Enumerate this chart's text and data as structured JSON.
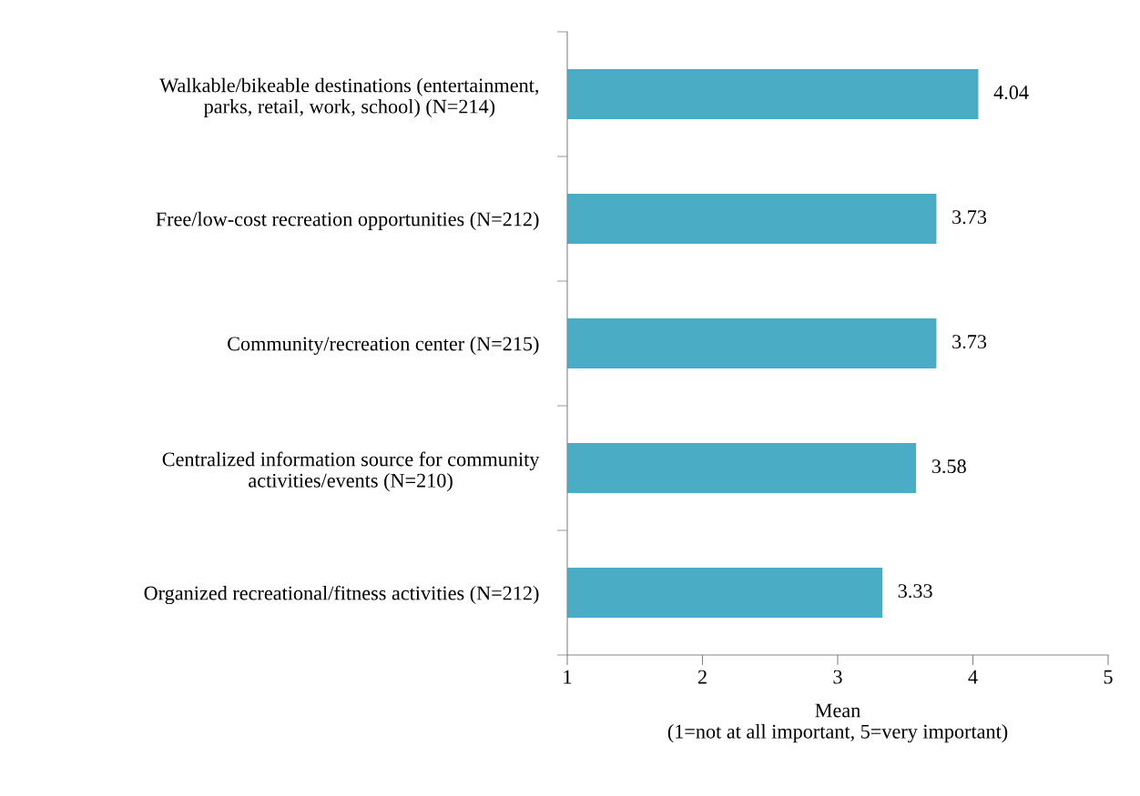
{
  "chart_data": {
    "type": "bar",
    "orientation": "horizontal",
    "categories": [
      "Walkable/bikeable destinations (entertainment,\nparks, retail, work, school) (N=214)",
      "Free/low-cost recreation opportunities (N=212)",
      "Community/recreation center (N=215)",
      "Centralized information source for community\nactivities/events (N=210)",
      "Organized recreational/fitness activities (N=212)"
    ],
    "values": [
      4.04,
      3.73,
      3.73,
      3.58,
      3.33
    ],
    "color": "#4bacc6",
    "xlim": [
      1,
      5
    ],
    "xticks": [
      1,
      2,
      3,
      4,
      5
    ],
    "xlabel": "Mean\n(1=not at all important, 5=very important)",
    "data_labels": true,
    "grid": false,
    "legend": false
  }
}
